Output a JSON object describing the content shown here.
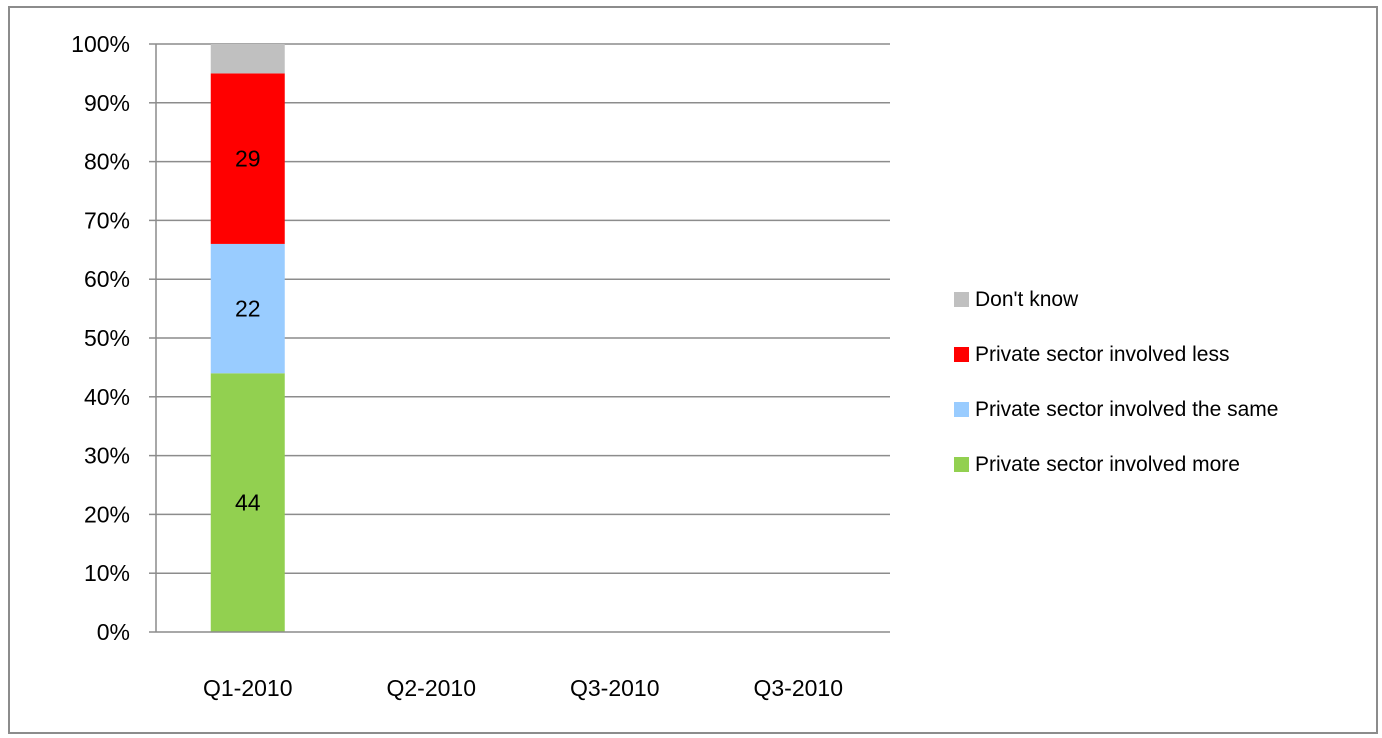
{
  "chart_data": {
    "type": "bar",
    "stacked": true,
    "normalized": true,
    "title": "",
    "xlabel": "",
    "ylabel": "",
    "categories": [
      "Q1-2010",
      "Q2-2010",
      "Q3-2010",
      "Q3-2010"
    ],
    "ylim": [
      0,
      100
    ],
    "yticks": [
      "0%",
      "10%",
      "20%",
      "30%",
      "40%",
      "50%",
      "60%",
      "70%",
      "80%",
      "90%",
      "100%"
    ],
    "grid": true,
    "legend_position": "right",
    "series": [
      {
        "name": "Private sector involved more",
        "color": "#92d050",
        "values": [
          44,
          null,
          null,
          null
        ],
        "labels": [
          "44",
          "",
          "",
          ""
        ]
      },
      {
        "name": "Private sector involved the same",
        "color": "#99ccff",
        "values": [
          22,
          null,
          null,
          null
        ],
        "labels": [
          "22",
          "",
          "",
          ""
        ]
      },
      {
        "name": "Private sector involved less",
        "color": "#ff0000",
        "values": [
          29,
          null,
          null,
          null
        ],
        "labels": [
          "29",
          "",
          "",
          ""
        ]
      },
      {
        "name": "Don't know",
        "color": "#c0c0c0",
        "values": [
          5,
          null,
          null,
          null
        ],
        "labels": [
          "",
          "",
          "",
          ""
        ]
      }
    ],
    "legend_order": [
      "Don't know",
      "Private sector involved less",
      "Private sector involved the same",
      "Private sector involved more"
    ]
  }
}
